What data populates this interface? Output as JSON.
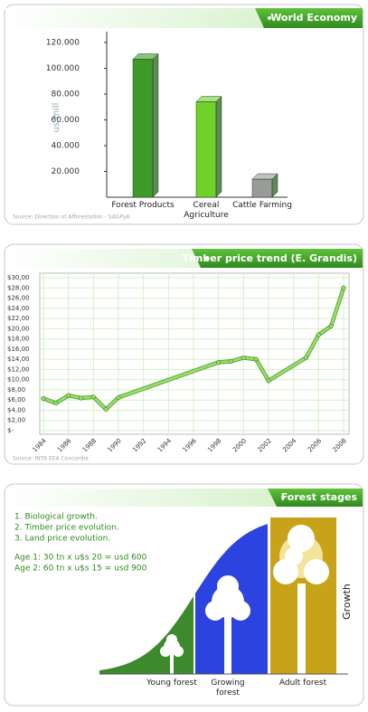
{
  "chart_data": [
    {
      "type": "bar",
      "title": "World Economy",
      "y_label": "us mill",
      "categories": [
        "Forest Products",
        "Cereal Agriculture",
        "Cattle Farming"
      ],
      "values": [
        107000,
        74000,
        14000
      ],
      "colors": [
        "#3f9a2c",
        "#6fd12a",
        "#9a9a9a"
      ],
      "ylim": [
        0,
        120000
      ],
      "yticks": [
        {
          "value": 20000,
          "label": "20.000"
        },
        {
          "value": 40000,
          "label": "40.000"
        },
        {
          "value": 60000,
          "label": "60.000"
        },
        {
          "value": 80000,
          "label": "80.000"
        },
        {
          "value": 100000,
          "label": "100.000"
        },
        {
          "value": 120000,
          "label": "120.000"
        }
      ],
      "source": "Source: Direction of Afforestation - SAGPyA"
    },
    {
      "type": "line",
      "title": "Timber price trend (E. Grandis)",
      "x": [
        1984,
        1985,
        1986,
        1987,
        1988,
        1989,
        1990,
        1998,
        1999,
        2000,
        2001,
        2002,
        2005,
        2006,
        2007,
        2008
      ],
      "series": [
        {
          "color": "#9bde6a",
          "values": [
            6.3,
            5.4,
            6.9,
            6.4,
            6.6,
            4.2,
            6.5,
            13.4,
            13.6,
            14.3,
            14.0,
            9.8,
            14.3,
            18.8,
            20.5,
            28.0
          ]
        }
      ],
      "xlim": [
        1984,
        2008
      ],
      "xticks": [
        1984,
        1986,
        1988,
        1990,
        1992,
        1994,
        1996,
        1998,
        2000,
        2002,
        2004,
        2006,
        2008
      ],
      "ylim": [
        0,
        30
      ],
      "yticks": [
        {
          "value": 0,
          "label": "$-"
        },
        {
          "value": 2,
          "label": "$2,00"
        },
        {
          "value": 4,
          "label": "$4,00"
        },
        {
          "value": 6,
          "label": "$6,00"
        },
        {
          "value": 8,
          "label": "$8,00"
        },
        {
          "value": 10,
          "label": "$10,00"
        },
        {
          "value": 12,
          "label": "$12,00"
        },
        {
          "value": 14,
          "label": "$14,00"
        },
        {
          "value": 16,
          "label": "$16,00"
        },
        {
          "value": 18,
          "label": "$18,00"
        },
        {
          "value": 20,
          "label": "$20,00"
        },
        {
          "value": 22,
          "label": "$22,00"
        },
        {
          "value": 24,
          "label": "$24,00"
        },
        {
          "value": 26,
          "label": "$26,00"
        },
        {
          "value": 28,
          "label": "$28,00"
        },
        {
          "value": 30,
          "label": "$30,00"
        }
      ],
      "grid": true,
      "source": "Source: INTA EEA Concordia"
    }
  ],
  "diagram": {
    "title": "Forest stages",
    "notes": [
      "1. Biological growth.",
      "2. Timber price evolution.",
      "3. Land price evolution."
    ],
    "ages": [
      "Age 1: 30 tn x u$s 20 = usd 600",
      "Age 2: 60 tn x u$s 15 = usd 900"
    ],
    "stages": [
      "Young forest",
      "Growing forest",
      "Adult forest"
    ],
    "axis_label": "Growth"
  }
}
